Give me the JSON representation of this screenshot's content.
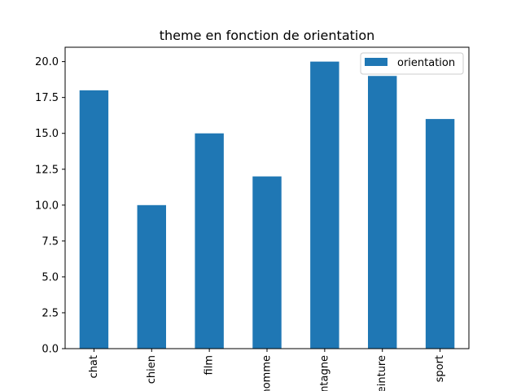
{
  "chart_data": {
    "type": "bar",
    "title": "theme en fonction de orientation",
    "xlabel": "",
    "ylabel": "",
    "categories": [
      "chat",
      "chien",
      "film",
      "homme",
      "montagne",
      "peinture",
      "sport"
    ],
    "series": [
      {
        "name": "orientation",
        "values": [
          18,
          10,
          15,
          12,
          20,
          19,
          16
        ]
      }
    ],
    "ylim": [
      0,
      21
    ],
    "yticks": [
      "0.0",
      "2.5",
      "5.0",
      "7.5",
      "10.0",
      "12.5",
      "15.0",
      "17.5",
      "20.0"
    ],
    "legend_position": "top-right",
    "grid": false,
    "bar_color": "#1f77b4"
  }
}
